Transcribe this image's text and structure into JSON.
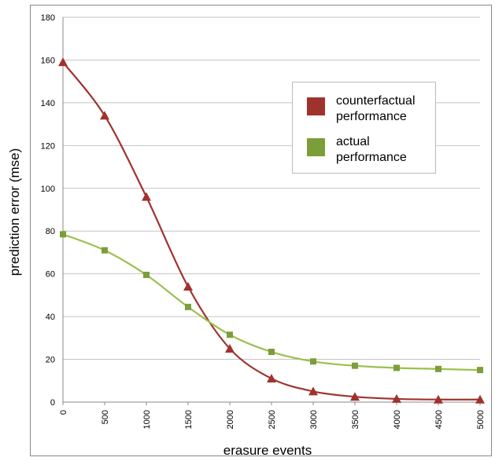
{
  "chart_data": {
    "type": "line",
    "title": "",
    "xlabel": "erasure events",
    "ylabel": "prediction error (mse)",
    "x": [
      0,
      500,
      1000,
      1500,
      2000,
      2500,
      3000,
      3500,
      4000,
      4500,
      5000
    ],
    "xlim": [
      0,
      5000
    ],
    "ylim": [
      0,
      180
    ],
    "x_ticks": [
      "0",
      "500",
      "1000",
      "1500",
      "2000",
      "2500",
      "3000",
      "3500",
      "4000",
      "4500",
      "5000"
    ],
    "y_ticks": [
      "0",
      "20",
      "40",
      "60",
      "80",
      "100",
      "120",
      "140",
      "160",
      "180"
    ],
    "grid": "horizontal",
    "legend_position": "right",
    "series": [
      {
        "name": "counterfactual performance",
        "legend_lines": [
          "counterfactual",
          "performance"
        ],
        "color": "#a0322e",
        "marker": "triangle",
        "values": [
          159,
          134,
          96,
          54,
          25,
          11,
          5,
          2.5,
          1.5,
          1.2,
          1.2
        ]
      },
      {
        "name": "actual performance",
        "legend_lines": [
          "actual",
          "performance"
        ],
        "color": "#7b9e3a",
        "line_color": "#9bc04e",
        "marker": "square",
        "values": [
          78.5,
          71,
          59.5,
          44.5,
          31.5,
          23.5,
          19,
          17,
          16,
          15.5,
          15
        ]
      }
    ]
  }
}
